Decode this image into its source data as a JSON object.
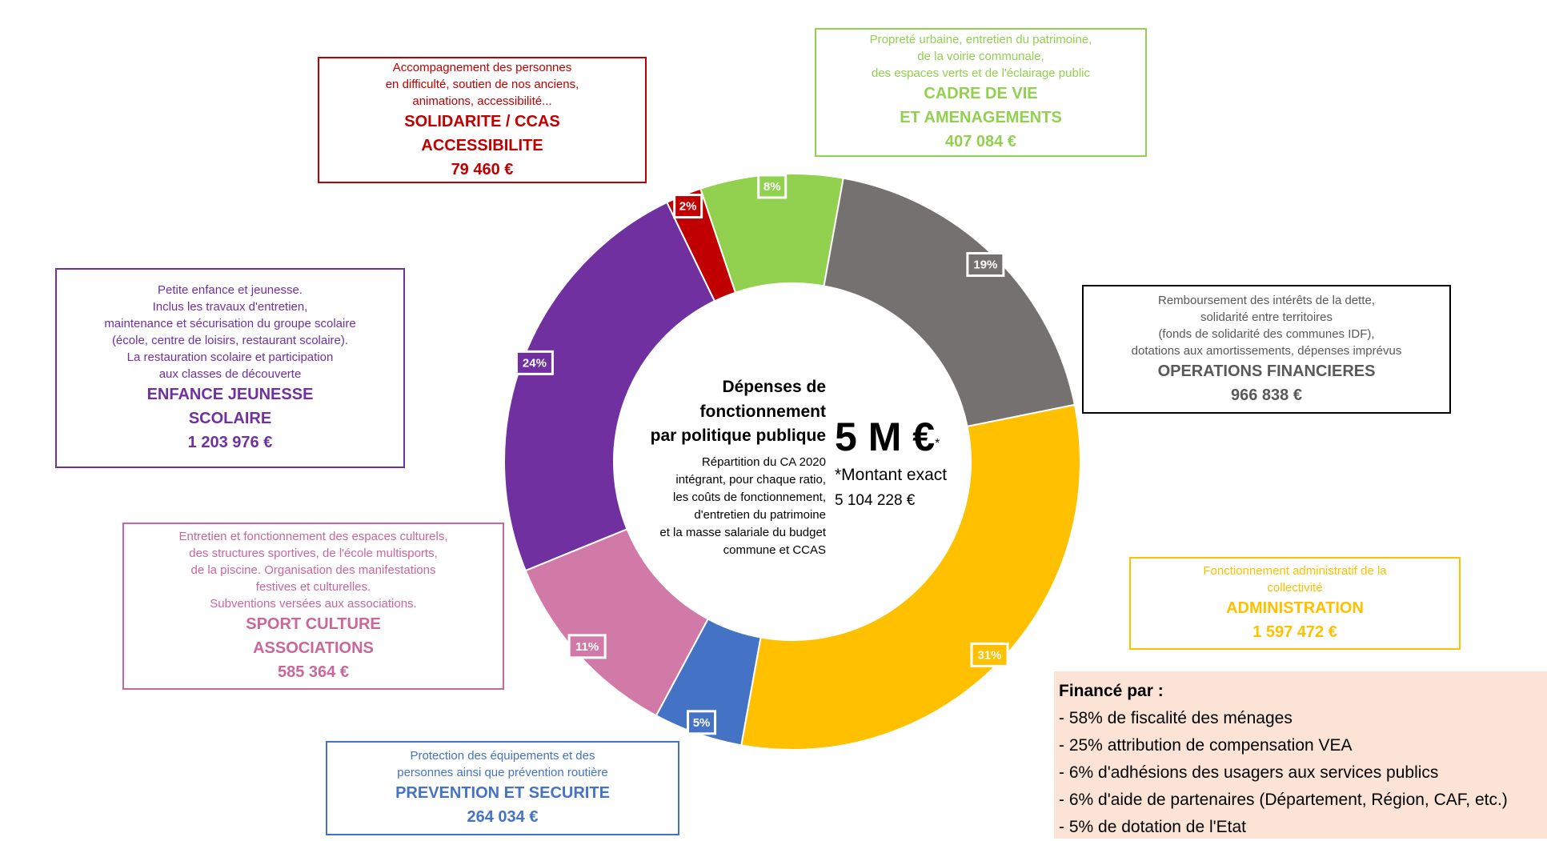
{
  "chart_data": {
    "type": "pie",
    "donut": true,
    "values": [
      8,
      19,
      31,
      5,
      11,
      24,
      2
    ],
    "value_labels": [
      "8%",
      "19%",
      "31%",
      "5%",
      "11%",
      "24%",
      "2%"
    ],
    "colors": [
      "#92d050",
      "#767171",
      "#ffc000",
      "#4472c4",
      "#d17aa8",
      "#7030a0",
      "#c00000"
    ],
    "annotations": [
      {
        "description": [
          "Propreté urbaine, entretien du patrimoine,",
          "de la voirie communale,",
          "des espaces verts et de l'éclairage public"
        ],
        "title": [
          "CADRE DE VIE",
          "ET AMENAGEMENTS"
        ],
        "amount": "407 084 €",
        "color": "#92d050",
        "border_color": "#92d050"
      },
      {
        "description": [
          "Remboursement des intérêts de la dette,",
          "solidarité entre territoires",
          "(fonds de solidarité des communes IDF),",
          "dotations aux amortissements, dépenses imprévus"
        ],
        "title": [
          "OPERATIONS FINANCIERES"
        ],
        "amount": "966 838 €",
        "color": "#595959",
        "border_color": "#000000"
      },
      {
        "description": [
          "Fonctionnement administratif de la",
          "collectivité"
        ],
        "title": [
          "ADMINISTRATION"
        ],
        "amount": "1 597 472 €",
        "color": "#ffc000",
        "border_color": "#ffc000"
      },
      {
        "description": [
          "Protection des équipements et des",
          "personnes ainsi que prévention routière"
        ],
        "title": [
          "PREVENTION ET SECURITE"
        ],
        "amount": "264 034 €",
        "color": "#4472c4",
        "border_color": "#4472c4"
      },
      {
        "description": [
          "Entretien et fonctionnement des espaces culturels,",
          "des structures sportives, de l'école multisports,",
          "de la piscine. Organisation des manifestations",
          "festives et culturelles.",
          "Subventions versées aux associations."
        ],
        "title": [
          "SPORT CULTURE",
          "ASSOCIATIONS"
        ],
        "amount": "585 364 €",
        "color": "#c9679a",
        "border_color": "#c9679a"
      },
      {
        "description": [
          "Petite enfance et jeunesse.",
          "Inclus les travaux d'entretien,",
          "maintenance et sécurisation du groupe scolaire",
          "(école, centre de loisirs, restaurant scolaire).",
          "La restauration scolaire et participation",
          "aux classes de découverte"
        ],
        "title": [
          "ENFANCE JEUNESSE",
          "SCOLAIRE"
        ],
        "amount": "1 203 976 €",
        "color": "#7030a0",
        "border_color": "#7030a0"
      },
      {
        "description": [
          "Accompagnement des personnes",
          "en difficulté, soutien de nos anciens,",
          "animations, accessibilité..."
        ],
        "title": [
          "SOLIDARITE / CCAS",
          "ACCESSIBILITE"
        ],
        "amount": "79 460 €",
        "color": "#c00000",
        "border_color": "#c00000"
      }
    ],
    "center": {
      "title": [
        "Dépenses de",
        "fonctionnement",
        "par politique publique"
      ],
      "total": "5 M €",
      "total_note_mark": "*",
      "note": [
        "Répartition du CA 2020",
        "intégrant, pour chaque ratio,",
        "les coûts de fonctionnement,",
        "d'entretien du patrimoine",
        "et la masse salariale du budget",
        "commune  et CCAS"
      ],
      "exact_label": "*Montant exact",
      "exact_amount": "5 104 228 €"
    },
    "funding": {
      "title": "Financé par :",
      "items": [
        "- 58% de fiscalité des ménages",
        "- 25% attribution de compensation VEA",
        "- 6% d'adhésions des usagers aux services publics",
        "- 6% d'aide de partenaires (Département, Région, CAF, etc.)",
        "- 5% de dotation de l'Etat"
      ]
    }
  }
}
